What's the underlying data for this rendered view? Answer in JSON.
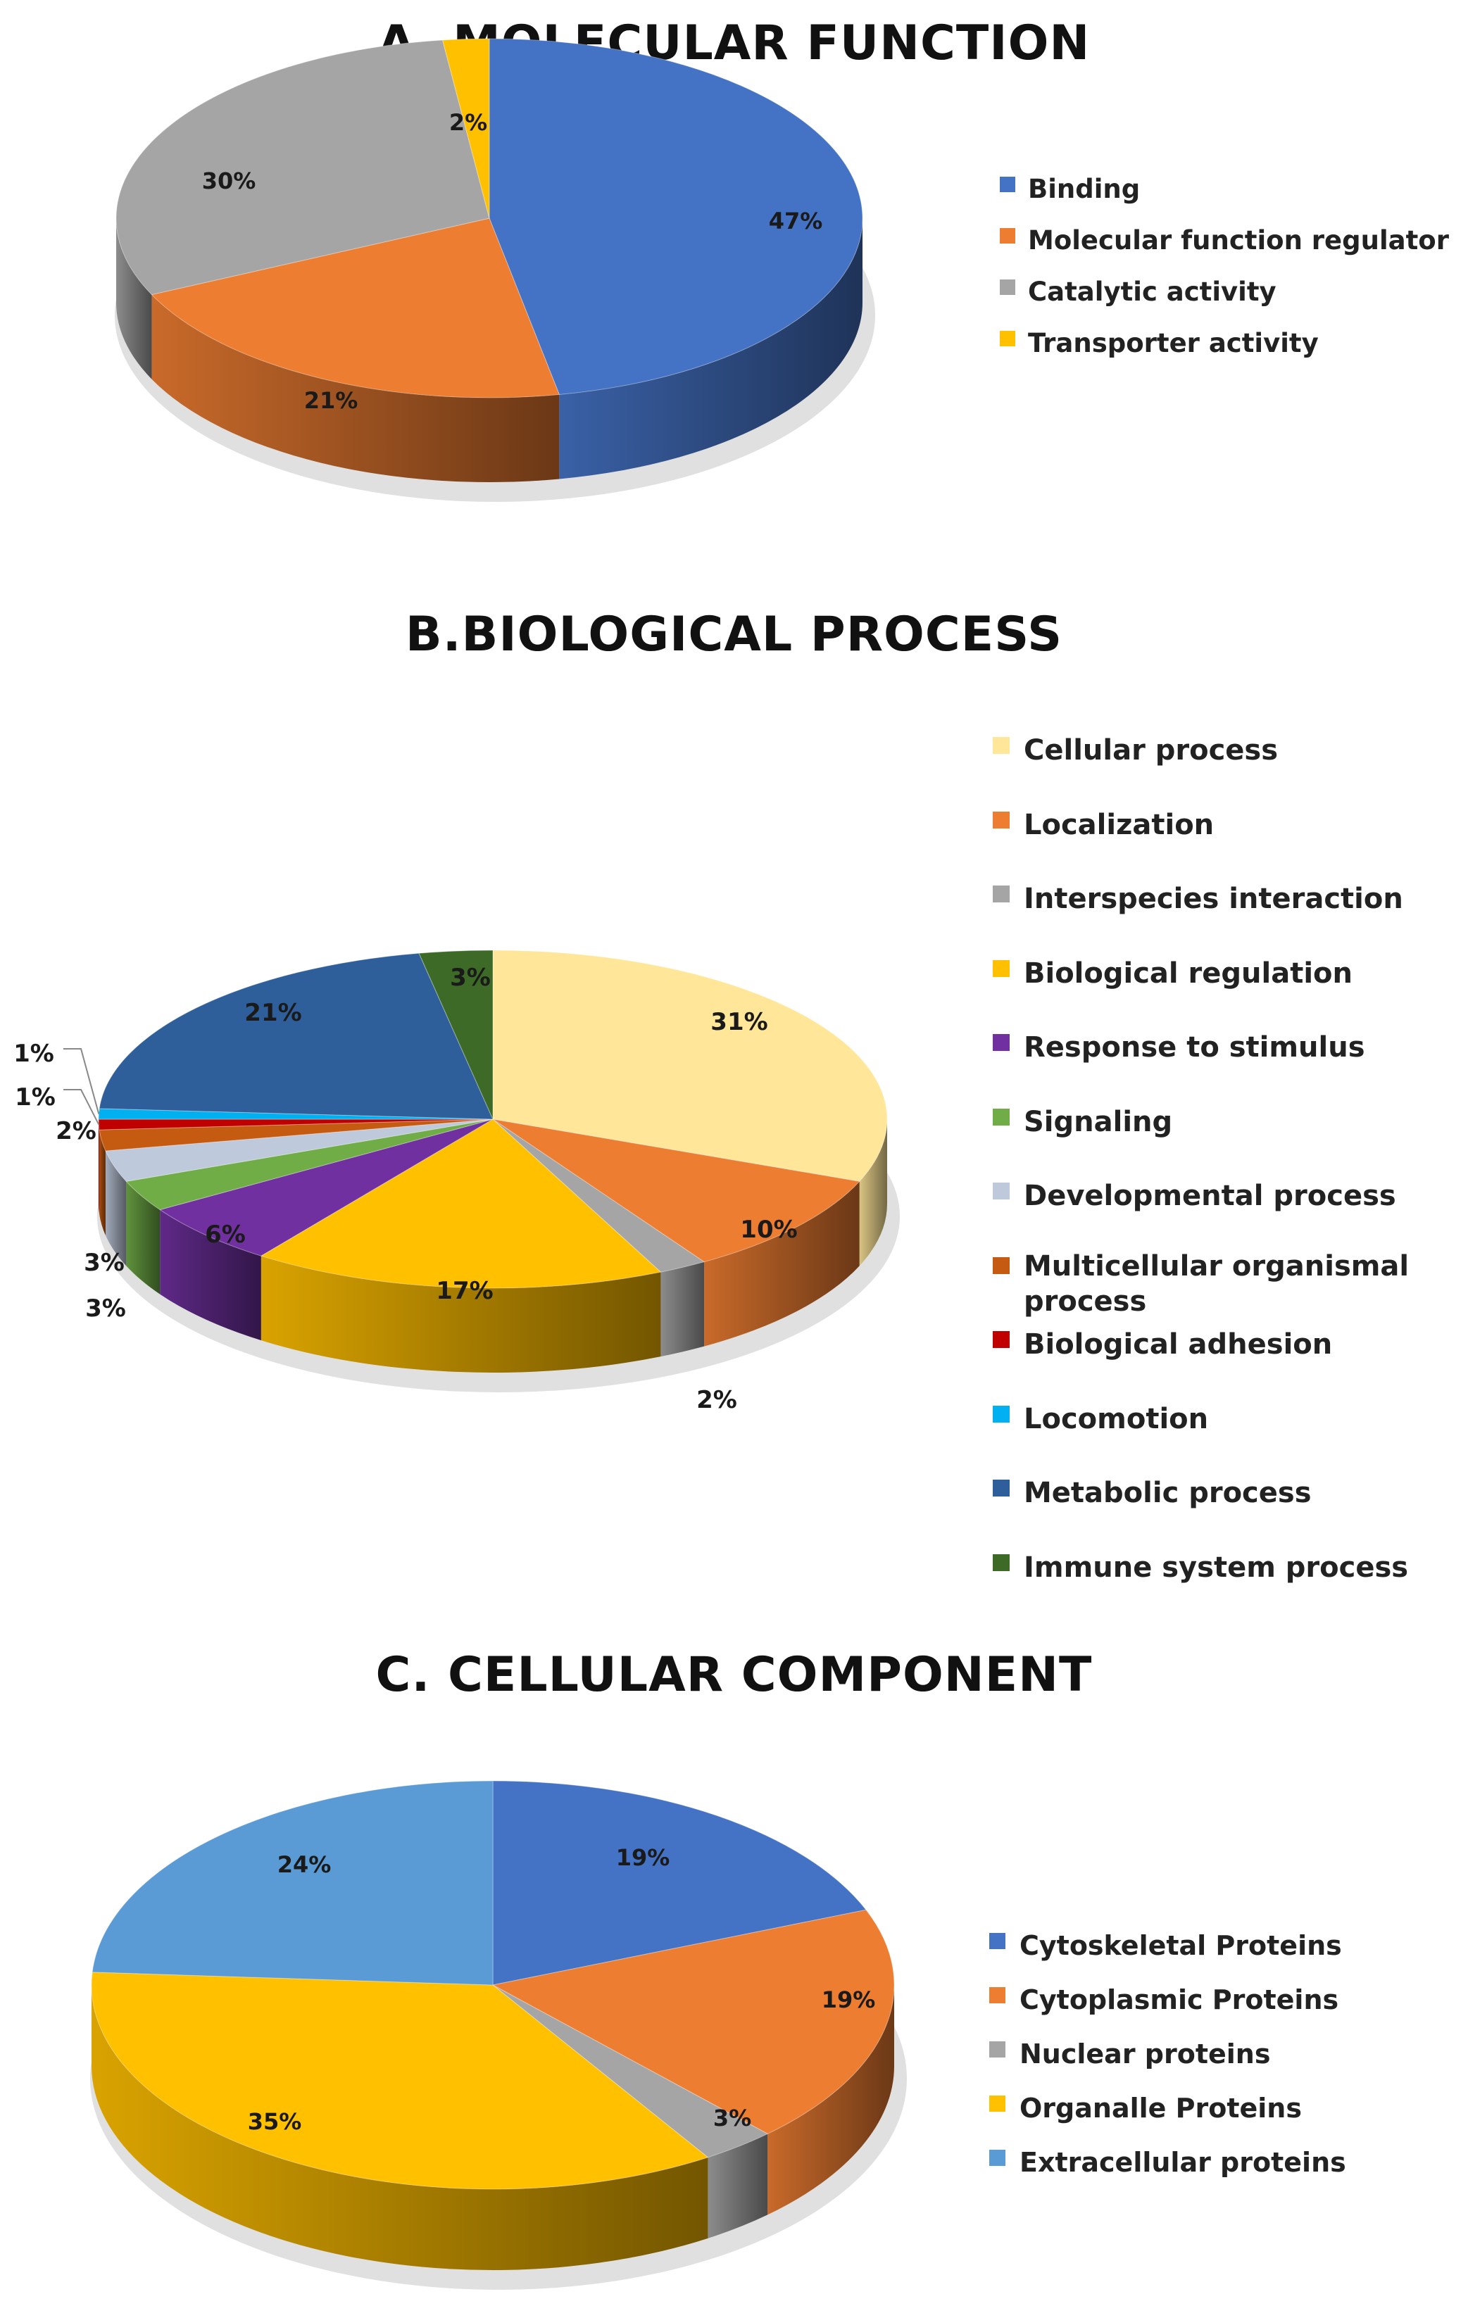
{
  "chart_data": [
    {
      "type": "pie",
      "title": "A. MOLECULAR FUNCTION",
      "categories": [
        "Binding",
        "Molecular function regulator",
        "Catalytic activity",
        "Transporter activity"
      ],
      "values": [
        47,
        21,
        30,
        2
      ],
      "labels": [
        "47%",
        "21%",
        "30%",
        "2%"
      ],
      "colors": [
        "#4472c4",
        "#ed7d31",
        "#a5a5a5",
        "#ffc000"
      ],
      "legend_position": "right"
    },
    {
      "type": "pie",
      "title": "B.BIOLOGICAL PROCESS",
      "categories": [
        "Cellular process",
        "Localization",
        "Interspecies interaction",
        "Biological regulation",
        "Response to stimulus",
        "Signaling",
        "Developmental process",
        "Multicellular organismal process",
        "Biological adhesion",
        "Locomotion",
        "Metabolic process",
        "Immune system process"
      ],
      "values": [
        31,
        10,
        2,
        17,
        6,
        3,
        3,
        2,
        1,
        1,
        21,
        3
      ],
      "labels": [
        "31%",
        "10%",
        "2%",
        "17%",
        "6%",
        "3%",
        "3%",
        "2%",
        "1%",
        "1%",
        "21%",
        "3%"
      ],
      "colors": [
        "#ffe699",
        "#ed7d31",
        "#a5a5a5",
        "#ffc000",
        "#7030a0",
        "#70ad47",
        "#bfc9dc",
        "#c55a11",
        "#c00000",
        "#00b0f0",
        "#2e5f9a",
        "#3d6b27"
      ],
      "legend_position": "right"
    },
    {
      "type": "pie",
      "title": "C. CELLULAR COMPONENT",
      "categories": [
        "Cytoskeletal Proteins",
        "Cytoplasmic Proteins",
        "Nuclear proteins",
        "Organalle Proteins",
        "Extracellular proteins"
      ],
      "values": [
        19,
        19,
        3,
        35,
        24
      ],
      "labels": [
        "19%",
        "19%",
        "3%",
        "35%",
        "24%"
      ],
      "colors": [
        "#4472c4",
        "#ed7d31",
        "#a5a5a5",
        "#ffc000",
        "#5b9bd5"
      ],
      "legend_position": "right"
    }
  ]
}
